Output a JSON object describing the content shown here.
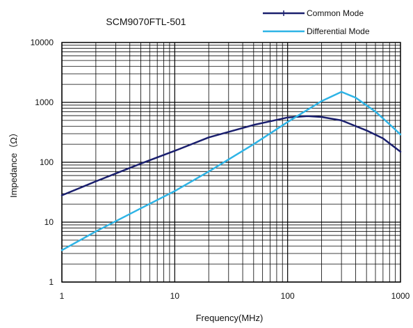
{
  "chart_data": {
    "type": "line",
    "title": "SCM9070FTL-501",
    "xlabel": "Frequency(MHz)",
    "ylabel": "Impedance（Ω）",
    "x_scale": "log",
    "y_scale": "log",
    "xlim": [
      1,
      1000
    ],
    "ylim": [
      1,
      10000
    ],
    "x_ticks": [
      1,
      10,
      100,
      1000
    ],
    "x_tick_labels": [
      "1",
      "10",
      "100",
      "1000"
    ],
    "y_ticks": [
      1,
      10,
      100,
      1000,
      10000
    ],
    "y_tick_labels": [
      "1",
      "10",
      "100",
      "1000",
      "10000"
    ],
    "grid": true,
    "legend_position": "top-right",
    "series": [
      {
        "name": "Common Mode",
        "color": "#1a1f6e",
        "points": [
          [
            1,
            28
          ],
          [
            2,
            48
          ],
          [
            5,
            95
          ],
          [
            10,
            155
          ],
          [
            20,
            260
          ],
          [
            50,
            420
          ],
          [
            100,
            560
          ],
          [
            150,
            590
          ],
          [
            200,
            570
          ],
          [
            300,
            500
          ],
          [
            500,
            340
          ],
          [
            700,
            250
          ],
          [
            1000,
            150
          ]
        ]
      },
      {
        "name": "Differential Mode",
        "color": "#2eb4e6",
        "points": [
          [
            1,
            3.4
          ],
          [
            2,
            7
          ],
          [
            5,
            17
          ],
          [
            10,
            33
          ],
          [
            20,
            70
          ],
          [
            50,
            200
          ],
          [
            100,
            470
          ],
          [
            200,
            1050
          ],
          [
            300,
            1500
          ],
          [
            400,
            1200
          ],
          [
            600,
            700
          ],
          [
            800,
            430
          ],
          [
            1000,
            290
          ]
        ]
      }
    ]
  }
}
